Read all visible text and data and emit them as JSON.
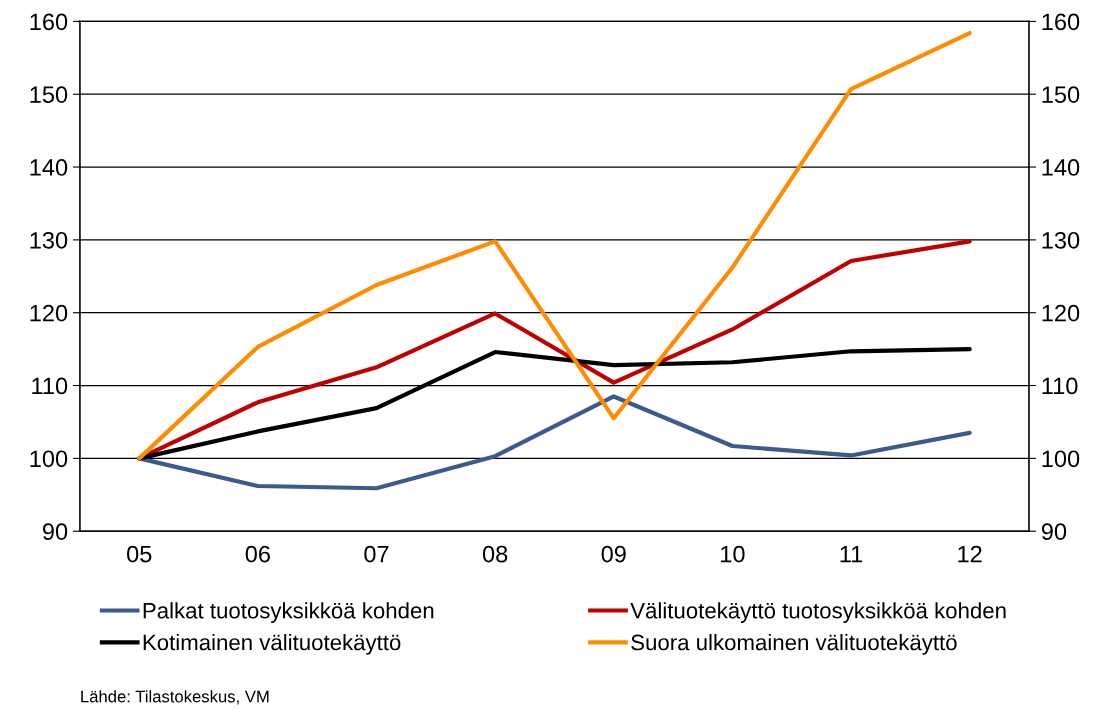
{
  "chart_data": {
    "type": "line",
    "categories": [
      "05",
      "06",
      "07",
      "08",
      "09",
      "10",
      "11",
      "12"
    ],
    "series": [
      {
        "name": "Palkat tuotosyksikköä kohden",
        "color": "#3c5a8c",
        "values": [
          100,
          96.2,
          95.9,
          100.3,
          108.5,
          101.7,
          100.4,
          103.5
        ]
      },
      {
        "name": "Välituotekäyttö tuotosyksikköä kohden",
        "color": "#c00000",
        "values": [
          100,
          107.7,
          112.5,
          119.9,
          110.4,
          117.7,
          127.1,
          129.8
        ]
      },
      {
        "name": "Kotimainen välituotekäyttö",
        "color": "#000000",
        "values": [
          100,
          103.7,
          106.9,
          114.6,
          112.8,
          113.2,
          114.7,
          115.0
        ]
      },
      {
        "name": "Suora ulkomainen välituotekäyttö",
        "color": "#ff8c00",
        "values": [
          100,
          115.3,
          123.8,
          129.8,
          105.5,
          126.2,
          150.7,
          158.4
        ]
      }
    ],
    "ylim": [
      90,
      160
    ],
    "yticks": [
      90,
      100,
      110,
      120,
      130,
      140,
      150,
      160
    ],
    "y2lim": [
      90,
      160
    ],
    "y2ticks": [
      90,
      100,
      110,
      120,
      130,
      140,
      150,
      160
    ],
    "grid": "y",
    "legend": "bottom",
    "marker": "none",
    "line_style": "solid",
    "annotations": [
      "Lähde: Tilastokeskus, VM"
    ]
  }
}
